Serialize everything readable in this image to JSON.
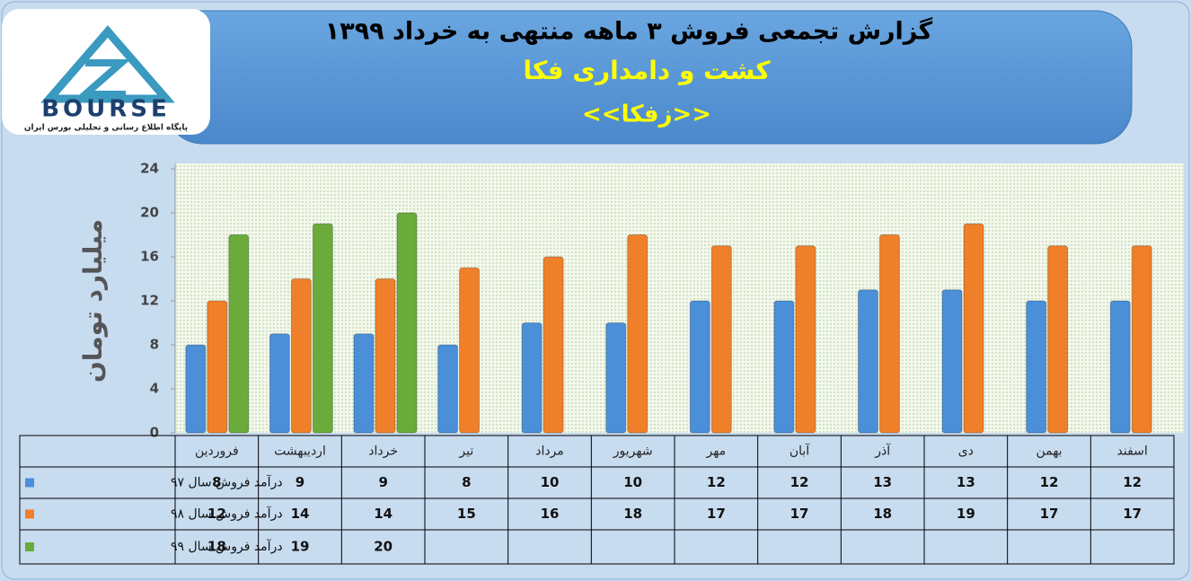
{
  "logo": {
    "text": "BOURSE",
    "tagline": "پایگاه اطلاع رسانی و تحلیلی بورس ایران"
  },
  "chart_data": {
    "type": "bar",
    "title": "گزارش تجمعی فروش  ۳ ماهه منتهی به خرداد ۱۳۹۹",
    "subtitle": "کشت و دامداری فکا",
    "symbol": "<<زفکا>>",
    "y_label": "میلیارد تومان",
    "categories": [
      "فروردین",
      "اردیبهشت",
      "خرداد",
      "تیر",
      "مرداد",
      "شهریور",
      "مهر",
      "آبان",
      "آذر",
      "دی",
      "بهمن",
      "اسفند"
    ],
    "series": [
      {
        "name": "درآمد فروش سال ۹۷",
        "color": "#4a8fd8",
        "values": [
          8,
          9,
          9,
          8,
          10,
          10,
          12,
          12,
          13,
          13,
          12,
          12
        ]
      },
      {
        "name": "درآمد فروش سال ۹۸",
        "color": "#f07f2a",
        "values": [
          12,
          14,
          14,
          15,
          16,
          18,
          17,
          17,
          18,
          19,
          17,
          17
        ]
      },
      {
        "name": "درآمد فروش سال ۹۹",
        "color": "#6aab3c",
        "values": [
          18,
          19,
          20,
          null,
          null,
          null,
          null,
          null,
          null,
          null,
          null,
          null
        ]
      }
    ],
    "ylim": [
      0,
      24
    ],
    "yticks": [
      0,
      4,
      8,
      12,
      16,
      20,
      24
    ],
    "grid": false
  }
}
